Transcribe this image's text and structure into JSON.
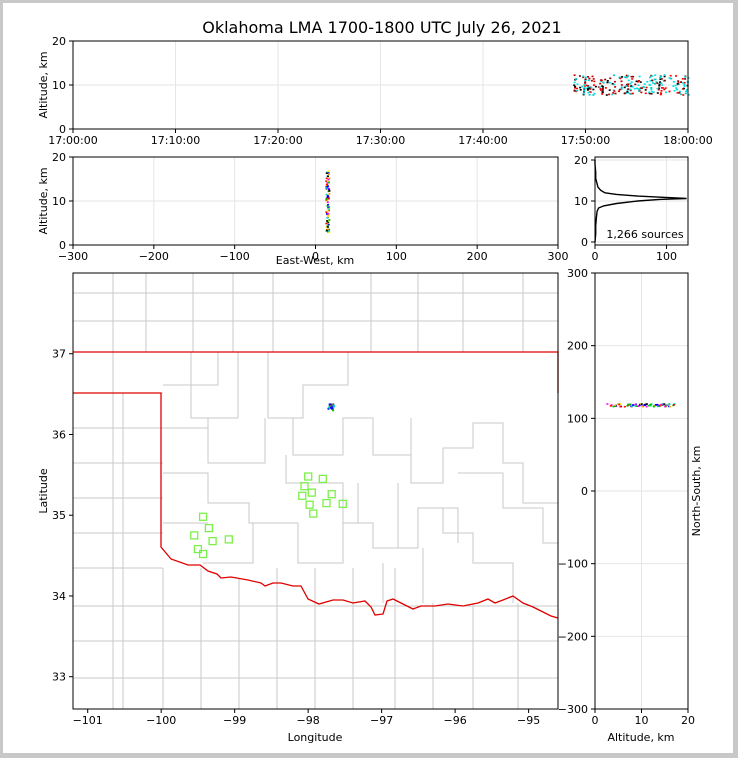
{
  "chart_data": {
    "type": "scatter",
    "title": "Oklahoma LMA 1700-1800 UTC July 26, 2021",
    "panels": {
      "time_height": {
        "ylabel": "Altitude, km",
        "ylim": [
          0,
          20
        ],
        "yticks": [
          "0",
          "10",
          "20"
        ],
        "xticks": [
          "17:00:00",
          "17:10:00",
          "17:20:00",
          "17:30:00",
          "17:40:00",
          "17:50:00",
          "18:00:00"
        ],
        "xlim_min": [
          0,
          60
        ]
      },
      "ew_height": {
        "ylabel": "Altitude, km",
        "xlabel": "East-West, km",
        "xlim": [
          -300,
          300
        ],
        "ylim": [
          0,
          20
        ],
        "xticks": [
          "−300",
          "−200",
          "−100",
          "0",
          "100",
          "200",
          "300"
        ],
        "yticks": [
          "0",
          "10",
          "20"
        ]
      },
      "histogram": {
        "xlim": [
          0,
          130
        ],
        "ylim": [
          0,
          20
        ],
        "xticks": [
          "0",
          "100"
        ],
        "yticks": [
          "0",
          "10",
          "20"
        ],
        "annotation": "1,266 sources",
        "profile": [
          [
            0,
            0
          ],
          [
            1,
            2
          ],
          [
            1,
            4
          ],
          [
            2,
            6
          ],
          [
            3,
            7.5
          ],
          [
            5,
            8.3
          ],
          [
            12,
            8.8
          ],
          [
            30,
            9.4
          ],
          [
            60,
            10
          ],
          [
            90,
            10.4
          ],
          [
            110,
            10.5
          ],
          [
            128,
            10.6
          ],
          [
            95,
            10.9
          ],
          [
            60,
            11.2
          ],
          [
            30,
            11.6
          ],
          [
            14,
            12
          ],
          [
            8,
            12.6
          ],
          [
            4,
            13.4
          ],
          [
            3,
            14.2
          ],
          [
            1,
            15.5
          ],
          [
            1,
            17
          ],
          [
            0,
            19
          ],
          [
            0,
            20
          ]
        ]
      },
      "map": {
        "xlabel": "Longitude",
        "ylabel": "Latitude",
        "xlim": [
          -101.2,
          -94.6
        ],
        "ylim": [
          32.6,
          38
        ],
        "xticks": [
          "−101",
          "−100",
          "−99",
          "−98",
          "−97",
          "−96",
          "−95"
        ],
        "yticks": [
          "33",
          "34",
          "35",
          "36",
          "37"
        ],
        "stations": [
          [
            -98.0,
            35.48
          ],
          [
            -97.8,
            35.45
          ],
          [
            -98.05,
            35.36
          ],
          [
            -97.95,
            35.28
          ],
          [
            -98.08,
            35.24
          ],
          [
            -97.68,
            35.26
          ],
          [
            -97.98,
            35.13
          ],
          [
            -97.75,
            35.15
          ],
          [
            -97.53,
            35.14
          ],
          [
            -97.93,
            35.02
          ],
          [
            -99.43,
            34.98
          ],
          [
            -99.35,
            34.84
          ],
          [
            -99.55,
            34.75
          ],
          [
            -99.3,
            34.68
          ],
          [
            -99.08,
            34.7
          ],
          [
            -99.5,
            34.58
          ],
          [
            -99.43,
            34.52
          ]
        ]
      },
      "ns_height": {
        "xlabel": "Altitude, km",
        "ylabel": "North-South, km",
        "xlim": [
          0,
          20
        ],
        "ylim": [
          -300,
          300
        ],
        "xticks": [
          "0",
          "10",
          "20"
        ],
        "yticks": [
          "300",
          "200",
          "100",
          "0",
          "−100",
          "−200",
          "−300"
        ]
      }
    }
  }
}
